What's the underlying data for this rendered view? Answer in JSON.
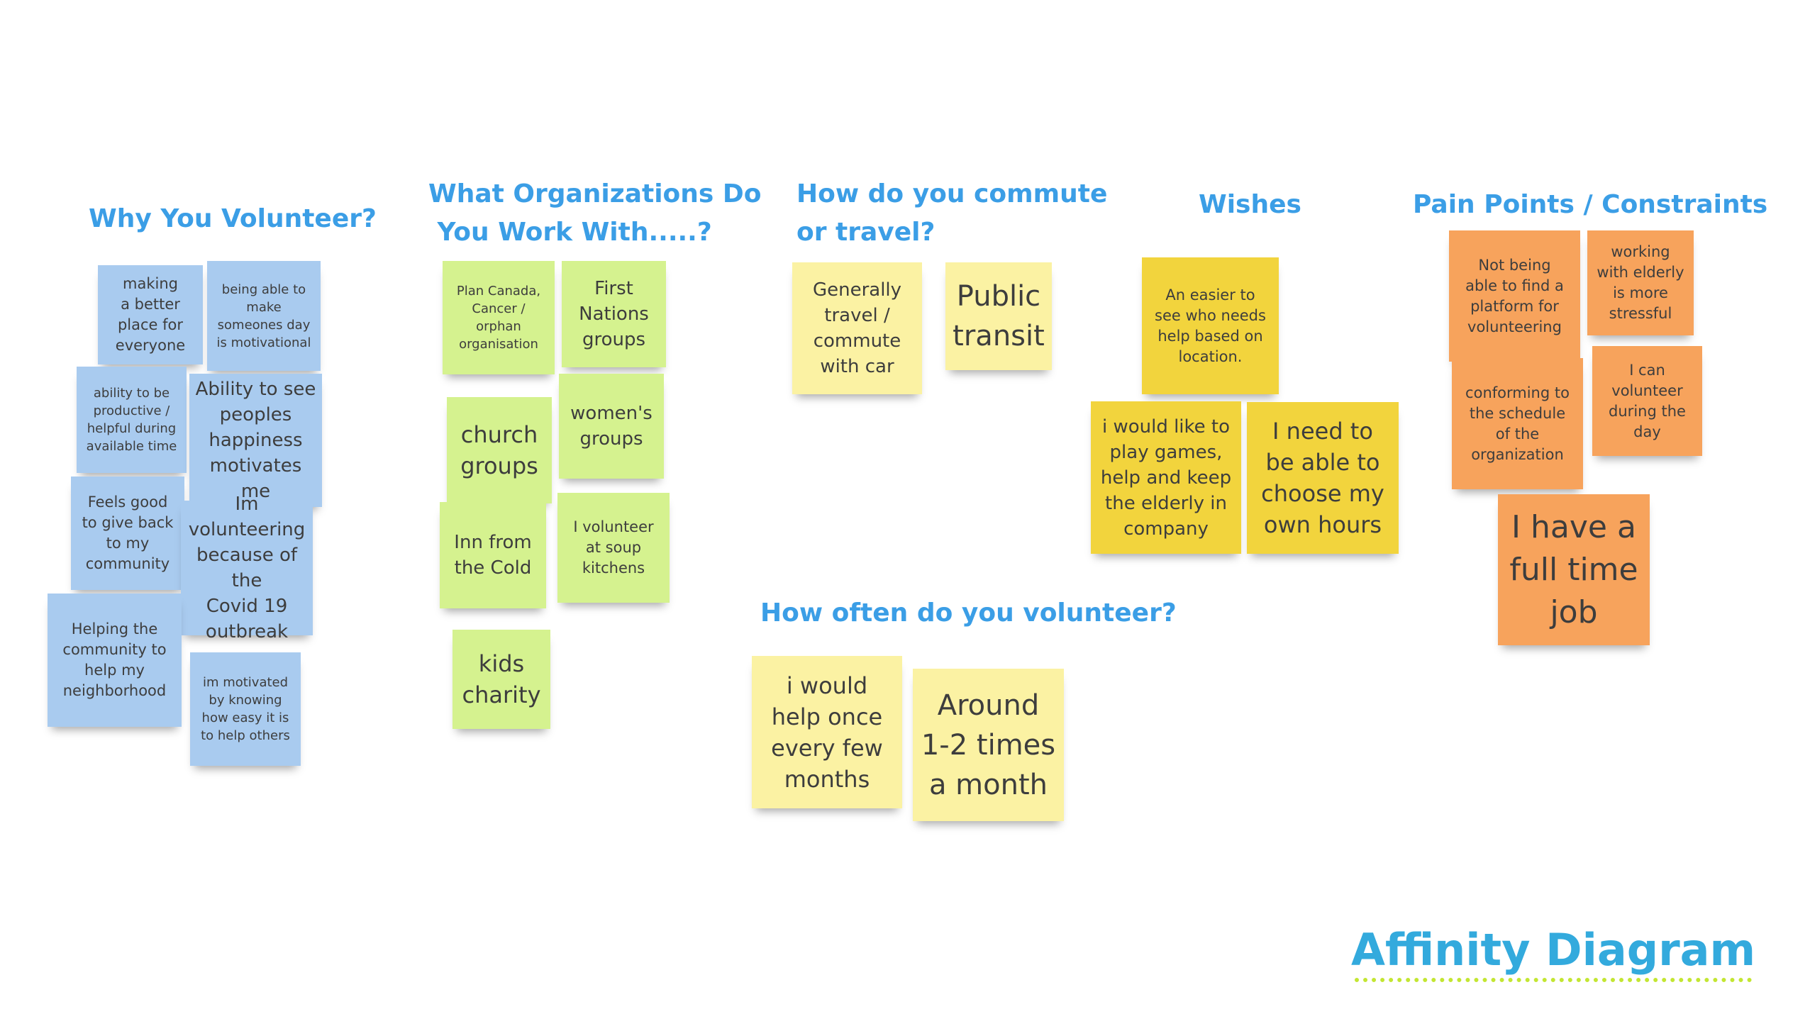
{
  "headings": {
    "why_volunteer": "Why You Volunteer?",
    "organizations": "What Organizations Do\n You Work With.....?",
    "commute": "How do you commute\nor travel?",
    "wishes": "Wishes",
    "pain_points": "Pain Points / Constraints",
    "how_often": "How often do you volunteer?"
  },
  "notes": {
    "why_volunteer": [
      "making\na better\nplace for\neveryone",
      "being able to\nmake\nsomeones day\nis motivational",
      "ability to be\nproductive /\nhelpful during\navailable time",
      "Ability to see\npeoples\nhappiness\nmotivates me",
      "Feels good\nto give back\nto my\ncommunity",
      "Im\nvolunteering\nbecause of the\nCovid 19\noutbreak",
      "Helping the\ncommunity to\nhelp my\nneighborhood",
      "im motivated\nby knowing\nhow easy it is\nto help others"
    ],
    "organizations": [
      "Plan Canada,\nCancer /\norphan\norganisation",
      "First\nNations\ngroups",
      "church\ngroups",
      "women's\ngroups",
      "Inn from\nthe Cold",
      "I volunteer\nat soup\nkitchens",
      "kids\ncharity"
    ],
    "commute": [
      "Generally\ntravel /\ncommute\nwith car",
      "Public\ntransit"
    ],
    "wishes": [
      "An easier to\nsee who needs\nhelp based on\nlocation.",
      "i would like to\nplay games,\nhelp and keep\nthe elderly in\ncompany",
      "I need to\nbe able to\nchoose my\nown hours"
    ],
    "pain_points": [
      "Not being\nable to find a\nplatform for\nvolunteering",
      "working\nwith elderly\nis more\nstressful",
      "conforming to\nthe schedule\nof the\norganization",
      "I can\nvolunteer\nduring the\nday",
      "I have a\nfull time\njob"
    ],
    "how_often": [
      "i would\nhelp once\nevery few\nmonths",
      "Around\n1-2 times\na month"
    ]
  },
  "colors": {
    "heading": "#3b9ee6",
    "blue_note": "#a9cbef",
    "green_note": "#d5f28f",
    "yellow_note": "#fbf2a3",
    "gold_note": "#f2d43d",
    "orange_note": "#f7a35c",
    "brand": "#33aadd",
    "brand_underline": "#c3e632"
  },
  "branding": {
    "title": "Affinity Diagram"
  }
}
